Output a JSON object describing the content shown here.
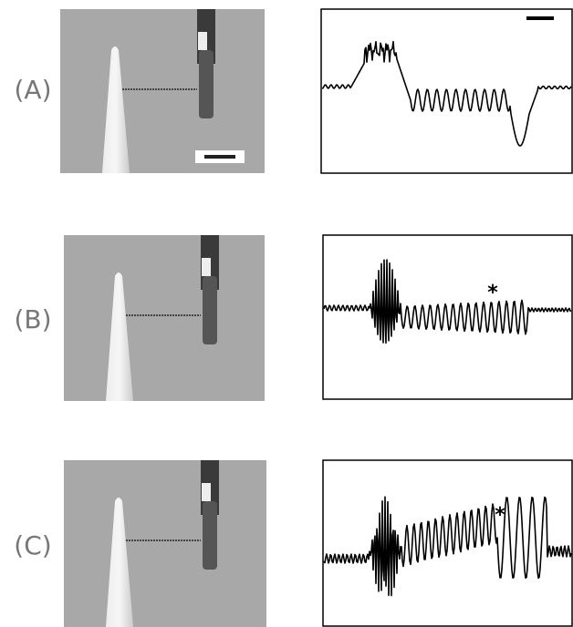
{
  "panels": [
    {
      "label": "(A)"
    },
    {
      "label": "(B)",
      "annotation": "*"
    },
    {
      "label": "(C)",
      "annotation": "*"
    }
  ]
}
